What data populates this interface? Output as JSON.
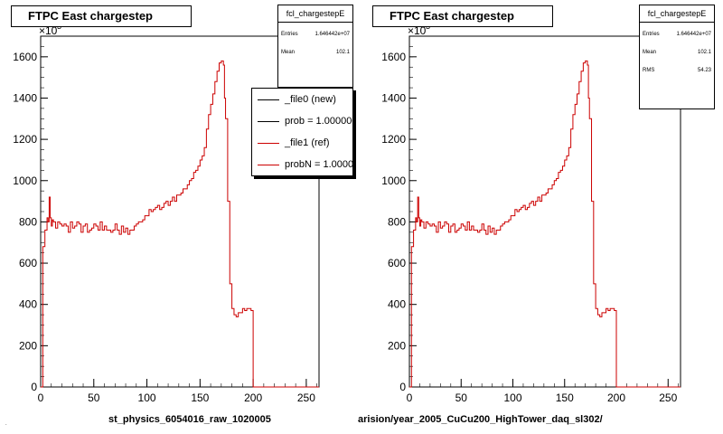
{
  "colors": {
    "reference": "#cc0000",
    "frame": "#000000",
    "fill": "#ffffff"
  },
  "footer": {
    "left_file": "st_physics_6054016_raw_1020005",
    "right_path": "arision/year_2005_CuCu200_HighTower_daq_sl302/",
    "left_tiny": "."
  },
  "chart_data": [
    {
      "type": "line",
      "title": "FTPC East chargestep",
      "exponent_label": "×10",
      "exponent_power": "3",
      "xlim": [
        0,
        262
      ],
      "ylim": [
        0,
        1700
      ],
      "xticks": [
        "0",
        "50",
        "100",
        "150",
        "200",
        "250"
      ],
      "yticks": [
        "0",
        "200",
        "400",
        "600",
        "800",
        "1000",
        "1200",
        "1400",
        "1600"
      ],
      "stats": {
        "name": "fcl_chargestepE",
        "entries_label": "Entries",
        "entries": "1.646442e+07",
        "mean_label": "Mean",
        "mean": "102.1"
      },
      "legend": {
        "entries": [
          {
            "label": "_file0 (new)",
            "color": "#000000"
          },
          {
            "label": "prob = 1.000000",
            "color": "#000000"
          },
          {
            "label": "_file1 (ref)",
            "color": "#cc0000"
          },
          {
            "label": "probN = 1.000000",
            "color": "#cc0000"
          }
        ]
      },
      "series": [
        {
          "name": "_file1 (ref)",
          "color": "#cc0000",
          "x": [
            0,
            2,
            4,
            6,
            7,
            8,
            9,
            10,
            11,
            12,
            14,
            16,
            18,
            20,
            22,
            24,
            26,
            28,
            30,
            32,
            34,
            36,
            38,
            40,
            42,
            44,
            46,
            48,
            50,
            52,
            54,
            56,
            58,
            60,
            62,
            64,
            66,
            68,
            70,
            72,
            74,
            76,
            78,
            80,
            82,
            84,
            86,
            88,
            90,
            92,
            94,
            96,
            98,
            100,
            102,
            104,
            106,
            108,
            110,
            112,
            114,
            116,
            118,
            120,
            122,
            124,
            126,
            128,
            130,
            132,
            134,
            136,
            138,
            140,
            142,
            144,
            146,
            148,
            150,
            152,
            154,
            156,
            158,
            160,
            162,
            164,
            166,
            168,
            170,
            172,
            173,
            174,
            176,
            178,
            180,
            182,
            184,
            186,
            188,
            190,
            192,
            194,
            196,
            198,
            200,
            201,
            202,
            204,
            262
          ],
          "y": [
            0,
            680,
            760,
            820,
            800,
            920,
            820,
            780,
            810,
            800,
            770,
            800,
            790,
            780,
            790,
            780,
            750,
            800,
            770,
            780,
            800,
            790,
            750,
            780,
            790,
            750,
            760,
            770,
            790,
            780,
            760,
            800,
            760,
            780,
            760,
            760,
            750,
            760,
            790,
            760,
            740,
            780,
            750,
            770,
            740,
            760,
            760,
            780,
            790,
            800,
            800,
            810,
            830,
            830,
            860,
            850,
            860,
            870,
            880,
            860,
            870,
            890,
            900,
            880,
            900,
            920,
            900,
            930,
            930,
            940,
            960,
            960,
            980,
            1000,
            1010,
            1040,
            1050,
            1070,
            1100,
            1120,
            1160,
            1250,
            1320,
            1370,
            1420,
            1480,
            1530,
            1570,
            1580,
            1560,
            1400,
            1300,
            900,
            500,
            380,
            350,
            340,
            360,
            360,
            380,
            370,
            380,
            380,
            370,
            0,
            0,
            0,
            0,
            0
          ]
        }
      ]
    },
    {
      "type": "line",
      "title": "FTPC East chargestep",
      "exponent_label": "×10",
      "exponent_power": "3",
      "xlim": [
        0,
        262
      ],
      "ylim": [
        0,
        1700
      ],
      "xticks": [
        "0",
        "50",
        "100",
        "150",
        "200",
        "250"
      ],
      "yticks": [
        "0",
        "200",
        "400",
        "600",
        "800",
        "1000",
        "1200",
        "1400",
        "1600"
      ],
      "stats": {
        "name": "fcl_chargestepE",
        "entries_label": "Entries",
        "entries": "1.646442e+07",
        "mean_label": "Mean",
        "mean": "102.1",
        "rms_label": "RMS",
        "rms": "54.23"
      },
      "series": [
        {
          "name": "_file1 (ref)",
          "color": "#cc0000",
          "x": [
            0,
            2,
            4,
            6,
            7,
            8,
            9,
            10,
            11,
            12,
            14,
            16,
            18,
            20,
            22,
            24,
            26,
            28,
            30,
            32,
            34,
            36,
            38,
            40,
            42,
            44,
            46,
            48,
            50,
            52,
            54,
            56,
            58,
            60,
            62,
            64,
            66,
            68,
            70,
            72,
            74,
            76,
            78,
            80,
            82,
            84,
            86,
            88,
            90,
            92,
            94,
            96,
            98,
            100,
            102,
            104,
            106,
            108,
            110,
            112,
            114,
            116,
            118,
            120,
            122,
            124,
            126,
            128,
            130,
            132,
            134,
            136,
            138,
            140,
            142,
            144,
            146,
            148,
            150,
            152,
            154,
            156,
            158,
            160,
            162,
            164,
            166,
            168,
            170,
            172,
            173,
            174,
            176,
            178,
            180,
            182,
            184,
            186,
            188,
            190,
            192,
            194,
            196,
            198,
            200,
            201,
            202,
            204,
            262
          ],
          "y": [
            0,
            680,
            760,
            820,
            800,
            920,
            820,
            780,
            810,
            800,
            770,
            800,
            790,
            780,
            790,
            780,
            750,
            800,
            770,
            780,
            800,
            790,
            750,
            780,
            790,
            750,
            760,
            770,
            790,
            780,
            760,
            800,
            760,
            780,
            760,
            760,
            750,
            760,
            790,
            760,
            740,
            780,
            750,
            770,
            740,
            760,
            760,
            780,
            790,
            800,
            800,
            810,
            830,
            830,
            860,
            850,
            860,
            870,
            880,
            860,
            870,
            890,
            900,
            880,
            900,
            920,
            900,
            930,
            930,
            940,
            960,
            960,
            980,
            1000,
            1010,
            1040,
            1050,
            1070,
            1100,
            1120,
            1160,
            1250,
            1320,
            1370,
            1420,
            1480,
            1530,
            1570,
            1580,
            1560,
            1400,
            1300,
            900,
            500,
            380,
            350,
            340,
            360,
            360,
            380,
            370,
            380,
            380,
            370,
            0,
            0,
            0,
            0,
            0
          ]
        }
      ]
    }
  ]
}
